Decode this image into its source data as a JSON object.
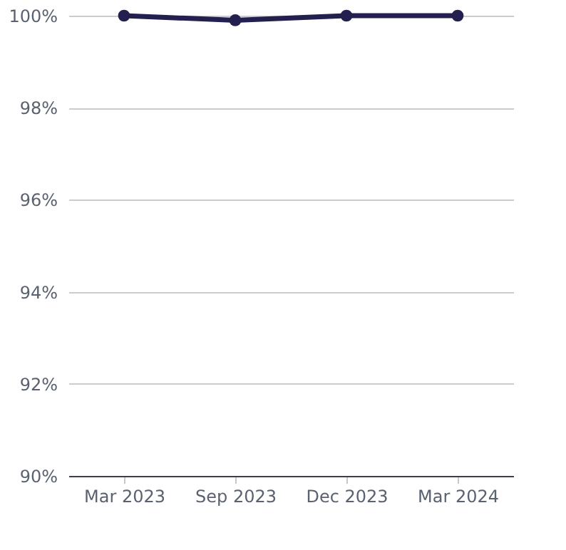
{
  "chart_data": {
    "type": "line",
    "categories": [
      "Mar 2023",
      "Sep 2023",
      "Dec 2023",
      "Mar 2024"
    ],
    "series": [
      {
        "color": "#231f4f",
        "values": [
          100,
          99.9,
          100,
          100
        ]
      }
    ],
    "ylim": [
      90,
      100
    ],
    "yticks": [
      {
        "value": 90,
        "label": "90%"
      },
      {
        "value": 92,
        "label": "92%"
      },
      {
        "value": 94,
        "label": "94%"
      },
      {
        "value": 96,
        "label": "96%"
      },
      {
        "value": 98,
        "label": "98%"
      },
      {
        "value": 100,
        "label": "100%"
      }
    ],
    "grid": "y",
    "marker": "circle",
    "line_style": "solid",
    "legend": false
  }
}
